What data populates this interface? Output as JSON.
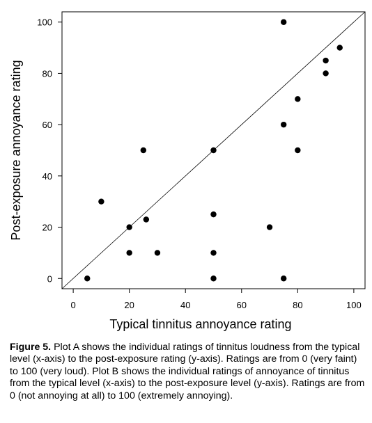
{
  "chart_data": {
    "type": "scatter",
    "xlabel": "Typical tinnitus annoyance rating",
    "ylabel": "Post-exposure annoyance rating",
    "xlim": [
      -4,
      104
    ],
    "ylim": [
      -4,
      104
    ],
    "xticks": [
      0,
      20,
      40,
      60,
      80,
      100
    ],
    "yticks": [
      0,
      20,
      40,
      60,
      80,
      100
    ],
    "xtick_labels": [
      "0",
      "20",
      "40",
      "60",
      "80",
      "100"
    ],
    "ytick_labels": [
      "0",
      "20",
      "40",
      "60",
      "80",
      "100"
    ],
    "grid": false,
    "reference_line": "y = x",
    "marker_color": "#000000",
    "points": [
      {
        "x": 5,
        "y": 0
      },
      {
        "x": 10,
        "y": 30
      },
      {
        "x": 20,
        "y": 20
      },
      {
        "x": 20,
        "y": 10
      },
      {
        "x": 25,
        "y": 50
      },
      {
        "x": 26,
        "y": 23
      },
      {
        "x": 30,
        "y": 10
      },
      {
        "x": 50,
        "y": 50
      },
      {
        "x": 50,
        "y": 25
      },
      {
        "x": 50,
        "y": 10
      },
      {
        "x": 50,
        "y": 0
      },
      {
        "x": 70,
        "y": 20
      },
      {
        "x": 75,
        "y": 100
      },
      {
        "x": 75,
        "y": 60
      },
      {
        "x": 75,
        "y": 0
      },
      {
        "x": 80,
        "y": 70
      },
      {
        "x": 80,
        "y": 50
      },
      {
        "x": 90,
        "y": 85
      },
      {
        "x": 90,
        "y": 80
      },
      {
        "x": 95,
        "y": 90
      }
    ]
  },
  "caption": {
    "label": "Figure 5.",
    "text": " Plot A shows the individual ratings of tinnitus loudness from the typical level (x-axis) to the post-exposure rating (y-axis). Ratings are from 0 (very faint) to 100 (very loud). Plot B shows the individual ratings of annoyance of tinnitus from the typical level (x-axis) to the post-exposure level (y-axis). Ratings are from 0 (not annoying at all) to 100 (extremely annoying)."
  }
}
